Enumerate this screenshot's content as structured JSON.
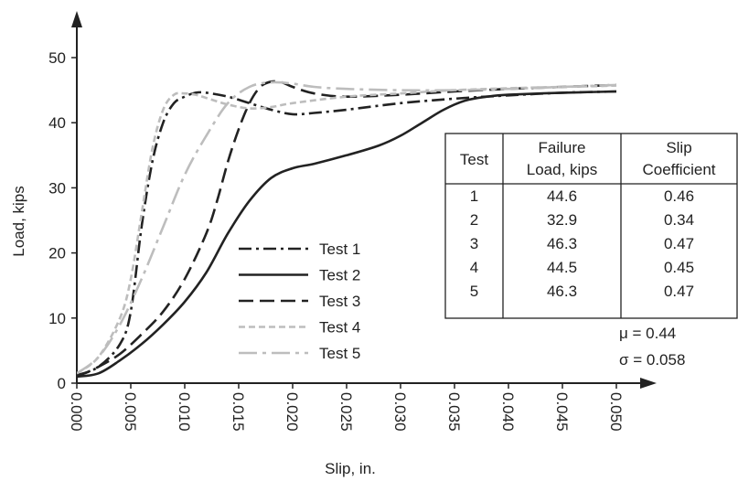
{
  "chart_data": {
    "type": "line",
    "xlabel": "Slip, in.",
    "ylabel": "Load, kips",
    "xlim": [
      0,
      0.05
    ],
    "ylim": [
      0,
      50
    ],
    "xticks": [
      "0.000",
      "0.005",
      "0.010",
      "0.015",
      "0.020",
      "0.025",
      "0.030",
      "0.035",
      "0.040",
      "0.045",
      "0.050"
    ],
    "yticks": [
      "0",
      "10",
      "20",
      "30",
      "40",
      "50"
    ],
    "grid": false,
    "legend_position": "center-left",
    "series": [
      {
        "name": "Test 1",
        "color": "#222222",
        "dash": "dash-dot",
        "points": [
          [
            0,
            1.2
          ],
          [
            0.002,
            2.5
          ],
          [
            0.004,
            6
          ],
          [
            0.005,
            11
          ],
          [
            0.006,
            24
          ],
          [
            0.007,
            34
          ],
          [
            0.008,
            40
          ],
          [
            0.009,
            43
          ],
          [
            0.01,
            44
          ],
          [
            0.011,
            44.6
          ],
          [
            0.012,
            44.6
          ],
          [
            0.014,
            44
          ],
          [
            0.016,
            43
          ],
          [
            0.018,
            42
          ],
          [
            0.02,
            41.3
          ],
          [
            0.022,
            41.5
          ],
          [
            0.025,
            42
          ],
          [
            0.03,
            43
          ],
          [
            0.035,
            43.7
          ],
          [
            0.04,
            44.2
          ],
          [
            0.045,
            44.6
          ],
          [
            0.05,
            44.8
          ]
        ]
      },
      {
        "name": "Test 2",
        "color": "#222222",
        "dash": "solid",
        "points": [
          [
            0,
            1
          ],
          [
            0.002,
            1.5
          ],
          [
            0.004,
            3.5
          ],
          [
            0.006,
            6
          ],
          [
            0.008,
            9
          ],
          [
            0.01,
            12.5
          ],
          [
            0.012,
            17
          ],
          [
            0.014,
            23
          ],
          [
            0.016,
            28
          ],
          [
            0.018,
            31.5
          ],
          [
            0.02,
            33
          ],
          [
            0.022,
            33.7
          ],
          [
            0.025,
            35
          ],
          [
            0.028,
            36.5
          ],
          [
            0.03,
            38
          ],
          [
            0.032,
            40
          ],
          [
            0.034,
            42
          ],
          [
            0.036,
            43.4
          ],
          [
            0.038,
            44
          ],
          [
            0.04,
            44.3
          ],
          [
            0.045,
            44.6
          ],
          [
            0.05,
            44.8
          ]
        ]
      },
      {
        "name": "Test 3",
        "color": "#222222",
        "dash": "long-dash",
        "points": [
          [
            0,
            1
          ],
          [
            0.002,
            2.5
          ],
          [
            0.004,
            4.5
          ],
          [
            0.006,
            7.5
          ],
          [
            0.008,
            11
          ],
          [
            0.01,
            16
          ],
          [
            0.012,
            23
          ],
          [
            0.013,
            28
          ],
          [
            0.014,
            34
          ],
          [
            0.015,
            39
          ],
          [
            0.016,
            43
          ],
          [
            0.017,
            45.5
          ],
          [
            0.018,
            46.3
          ],
          [
            0.019,
            46.2
          ],
          [
            0.02,
            45.5
          ],
          [
            0.022,
            44.5
          ],
          [
            0.025,
            44
          ],
          [
            0.03,
            44.3
          ],
          [
            0.035,
            44.8
          ],
          [
            0.04,
            45.2
          ],
          [
            0.045,
            45.5
          ],
          [
            0.05,
            45.8
          ]
        ]
      },
      {
        "name": "Test 4",
        "color": "#bdbdbd",
        "dash": "short-dash",
        "points": [
          [
            0,
            1.5
          ],
          [
            0.002,
            4
          ],
          [
            0.004,
            10
          ],
          [
            0.005,
            16
          ],
          [
            0.006,
            26
          ],
          [
            0.007,
            36
          ],
          [
            0.008,
            42
          ],
          [
            0.009,
            44.3
          ],
          [
            0.01,
            44.5
          ],
          [
            0.011,
            44.3
          ],
          [
            0.012,
            43.8
          ],
          [
            0.014,
            42.8
          ],
          [
            0.016,
            42.2
          ],
          [
            0.018,
            42.4
          ],
          [
            0.02,
            43
          ],
          [
            0.025,
            44
          ],
          [
            0.03,
            44.5
          ],
          [
            0.035,
            45
          ],
          [
            0.04,
            45.3
          ],
          [
            0.045,
            45.5
          ],
          [
            0.05,
            45.7
          ]
        ]
      },
      {
        "name": "Test 5",
        "color": "#bdbdbd",
        "dash": "long-dash-dot",
        "points": [
          [
            0,
            1.5
          ],
          [
            0.002,
            4
          ],
          [
            0.004,
            9
          ],
          [
            0.006,
            16
          ],
          [
            0.008,
            24
          ],
          [
            0.01,
            32
          ],
          [
            0.012,
            38
          ],
          [
            0.014,
            43
          ],
          [
            0.016,
            45.5
          ],
          [
            0.018,
            46.2
          ],
          [
            0.02,
            46
          ],
          [
            0.022,
            45.5
          ],
          [
            0.025,
            45.2
          ],
          [
            0.03,
            45
          ],
          [
            0.035,
            45
          ],
          [
            0.04,
            45.2
          ],
          [
            0.045,
            45.5
          ],
          [
            0.05,
            45.8
          ]
        ]
      }
    ],
    "table": {
      "headers": [
        [
          "Test"
        ],
        [
          "Failure",
          "Load, kips"
        ],
        [
          "Slip",
          "Coefficient"
        ]
      ],
      "rows": [
        [
          "1",
          "44.6",
          "0.46"
        ],
        [
          "2",
          "32.9",
          "0.34"
        ],
        [
          "3",
          "46.3",
          "0.47"
        ],
        [
          "4",
          "44.5",
          "0.45"
        ],
        [
          "5",
          "46.3",
          "0.47"
        ]
      ]
    },
    "annotations": {
      "mu": "μ = 0.44",
      "sigma": "σ = 0.058"
    }
  }
}
